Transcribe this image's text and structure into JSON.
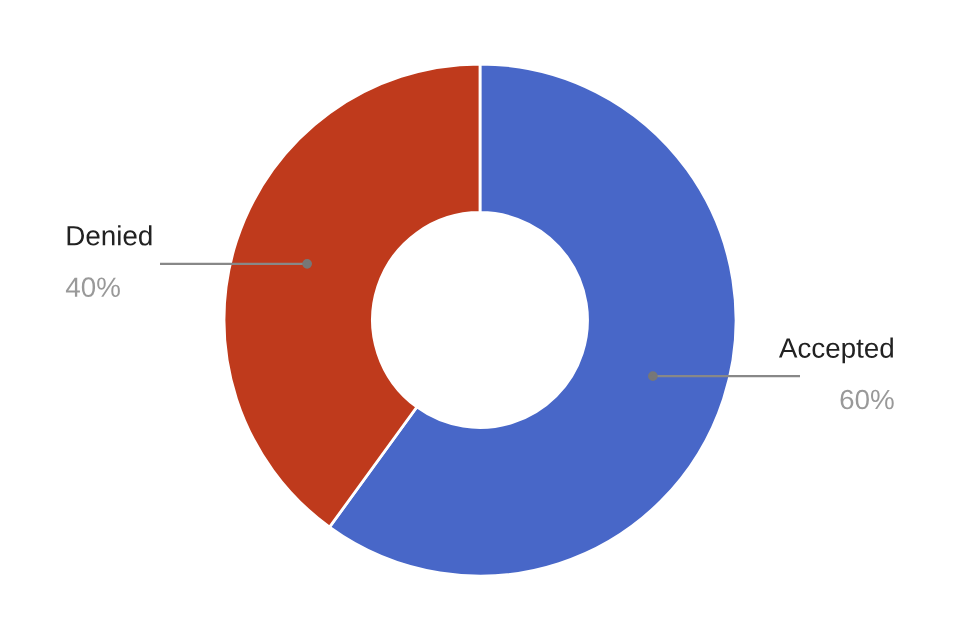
{
  "chart_data": {
    "type": "donut",
    "categories": [
      "Accepted",
      "Denied"
    ],
    "values": [
      60,
      40
    ],
    "colors": [
      "#4867c8",
      "#bf3a1c"
    ],
    "value_labels": [
      "60%",
      "40%"
    ],
    "legend": false
  }
}
